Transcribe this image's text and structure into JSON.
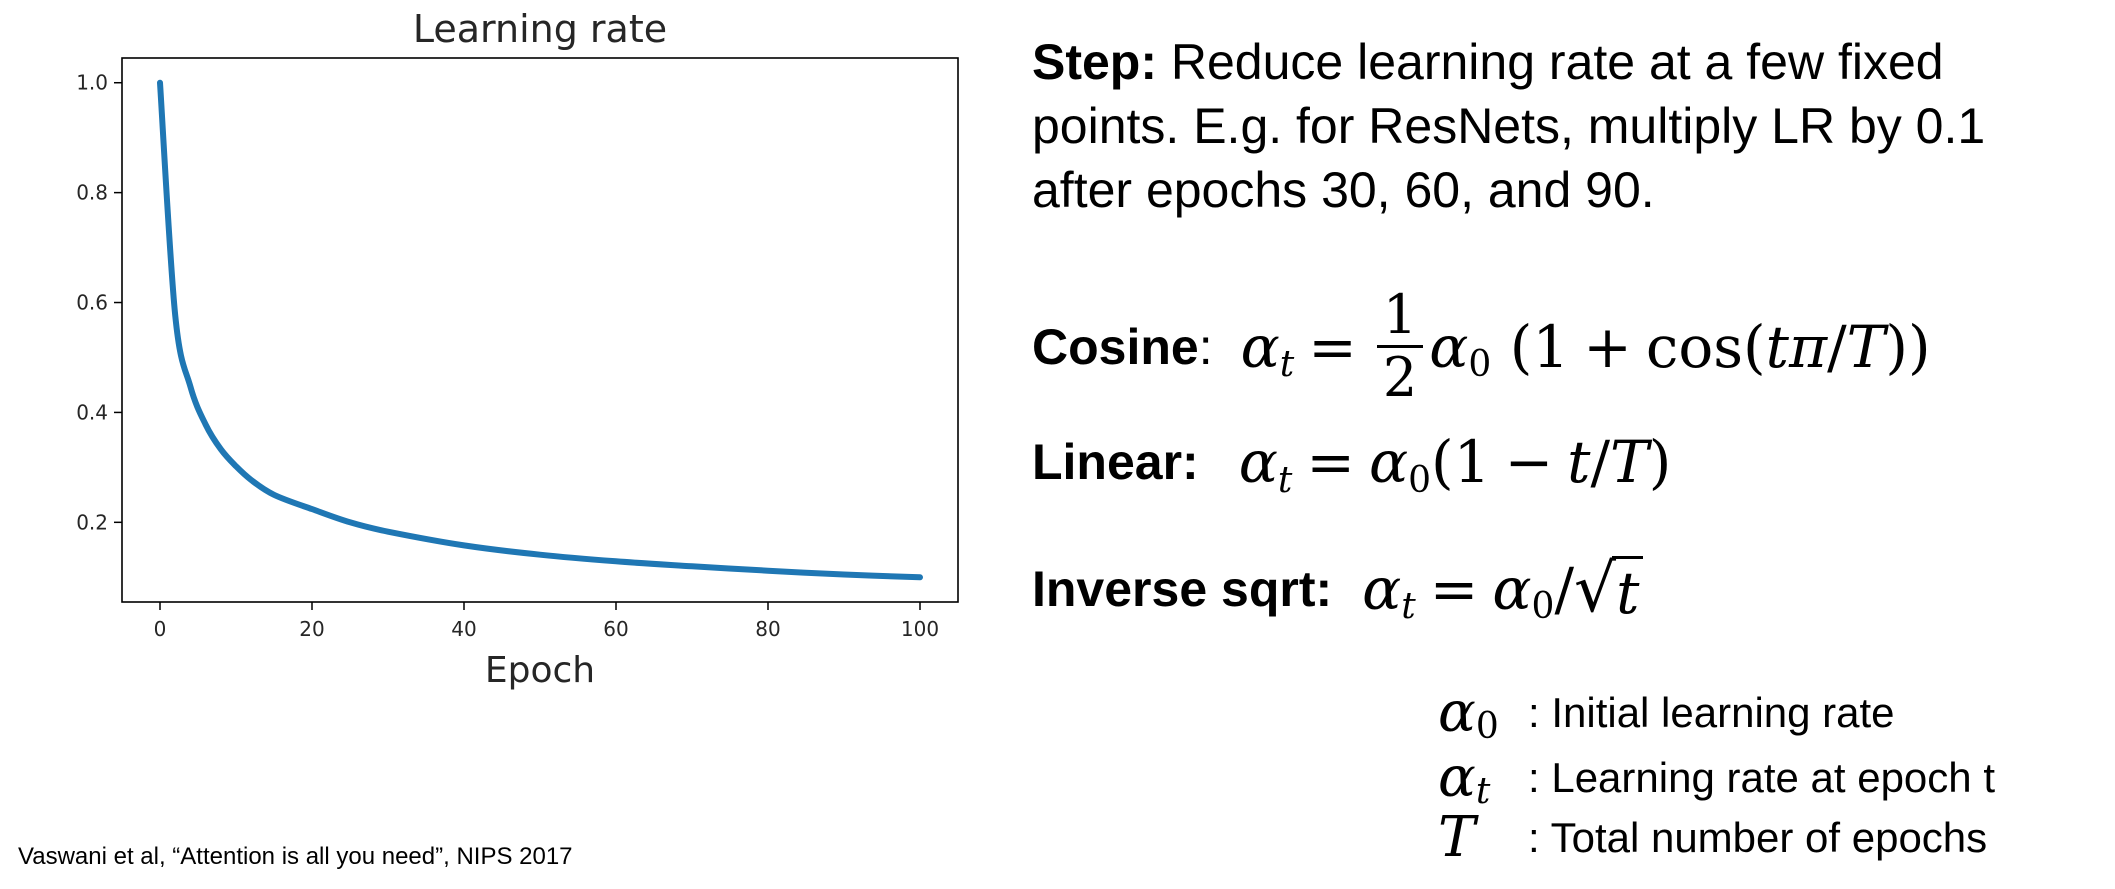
{
  "chart_data": {
    "type": "line",
    "title": "Learning rate",
    "xlabel": "Epoch",
    "ylabel": "",
    "xlim": [
      -5,
      105
    ],
    "ylim": [
      0.055,
      1.045
    ],
    "x_ticks": [
      0,
      20,
      40,
      60,
      80,
      100
    ],
    "y_ticks": [
      0.2,
      0.4,
      0.6,
      0.8,
      1.0
    ],
    "y_tick_labels": [
      "0.2",
      "0.4",
      "0.6",
      "0.8",
      "1.0"
    ],
    "grid": false,
    "series": [
      {
        "color": "#1f77b4",
        "x": [
          0,
          2,
          4,
          6,
          8,
          10,
          12,
          15,
          20,
          25,
          30,
          40,
          50,
          60,
          70,
          80,
          90,
          100
        ],
        "y": [
          1.0,
          0.577,
          0.447,
          0.378,
          0.333,
          0.302,
          0.277,
          0.25,
          0.224,
          0.2,
          0.183,
          0.158,
          0.141,
          0.129,
          0.12,
          0.112,
          0.105,
          0.1
        ]
      }
    ]
  },
  "step": {
    "label": "Step:",
    "text": " Reduce learning rate at a few fixed points. E.g. for ResNets, multiply LR by 0.1 after epochs 30, 60, and 90."
  },
  "formulas": {
    "cosine_label": "Cosine",
    "cosine_colon": ":",
    "linear_label": "Linear:",
    "inverse_label": "Inverse sqrt:"
  },
  "legend": {
    "alpha0_text": ": Initial learning rate",
    "alphat_text": ": Learning rate at epoch t",
    "T_text": ": Total number of epochs"
  },
  "citation": "Vaswani et al, “Attention is all you need”, NIPS 2017"
}
